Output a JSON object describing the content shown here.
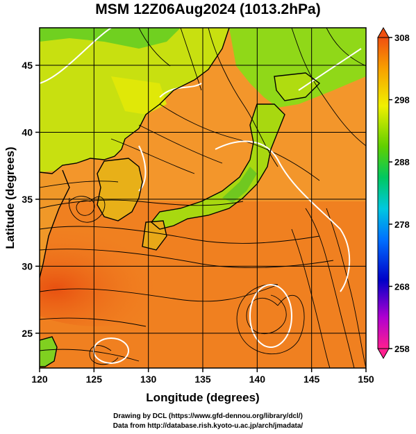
{
  "title": "MSM 12Z06Aug2024 (1013.2hPa)",
  "x_axis": {
    "label": "Longitude (degrees)",
    "range": [
      120,
      150
    ],
    "ticks": [
      "120",
      "125",
      "130",
      "135",
      "140",
      "145",
      "150"
    ]
  },
  "y_axis": {
    "label": "Latitude  (degrees)",
    "range": [
      22.4,
      47.8
    ],
    "ticks": [
      "25",
      "30",
      "35",
      "40",
      "45"
    ]
  },
  "colorbar": {
    "ticks": [
      "308",
      "298",
      "288",
      "278",
      "268",
      "258"
    ],
    "range": [
      258,
      308
    ],
    "colors": [
      "#ff1f8f",
      "#b000d0",
      "#0000c8",
      "#0070ff",
      "#00c8e0",
      "#00c860",
      "#60d000",
      "#f0f000",
      "#f8a000",
      "#f05010"
    ]
  },
  "credits": {
    "line1": "Drawing by DCL (https://www.gfd-dennou.org/library/dcl/)",
    "line2": "Data from http://database.rish.kyoto-u.ac.jp/arch/jmadata/"
  },
  "colors": {
    "sea_warm": "#f07a20",
    "land_green": "#80d820",
    "land_yellow": "#e8e800",
    "coast": "#000000",
    "contour": "#ffffff",
    "streamline": "#000000"
  }
}
